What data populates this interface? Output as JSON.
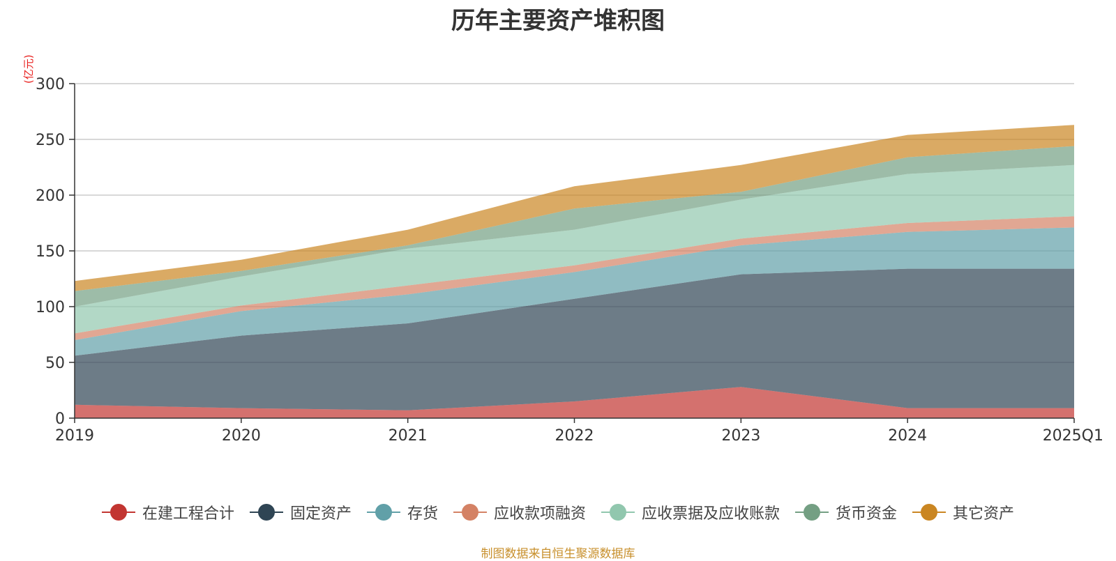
{
  "chart_data": {
    "type": "area",
    "stacked": true,
    "title": "历年主要资产堆积图",
    "unit_label": "(亿元)",
    "categories": [
      "2019",
      "2020",
      "2021",
      "2022",
      "2023",
      "2024",
      "2025Q1"
    ],
    "ylim": [
      0,
      300
    ],
    "yticks": [
      0,
      50,
      100,
      150,
      200,
      250,
      300
    ],
    "grid": true,
    "legend_position": "bottom",
    "series": [
      {
        "name": "在建工程合计",
        "color": "#c23531",
        "values": [
          12,
          9,
          7,
          15,
          28,
          9,
          9
        ]
      },
      {
        "name": "固定资产",
        "color": "#2f4554",
        "values": [
          44,
          65,
          78,
          92,
          101,
          125,
          125
        ]
      },
      {
        "name": "存货",
        "color": "#61a0a8",
        "values": [
          14,
          22,
          26,
          24,
          26,
          33,
          37
        ]
      },
      {
        "name": "应收款项融资",
        "color": "#d48265",
        "values": [
          6,
          5,
          8,
          6,
          6,
          8,
          10
        ]
      },
      {
        "name": "应收票据及应收账款",
        "color": "#91c7ae",
        "values": [
          24,
          26,
          33,
          32,
          35,
          44,
          46
        ]
      },
      {
        "name": "货币资金",
        "color": "#749f83",
        "values": [
          14,
          5,
          3,
          19,
          7,
          15,
          17
        ]
      },
      {
        "name": "其它资产",
        "color": "#ca8622",
        "values": [
          9,
          10,
          14,
          20,
          24,
          20,
          19
        ]
      }
    ]
  },
  "source_note": "制图数据来自恒生聚源数据库"
}
